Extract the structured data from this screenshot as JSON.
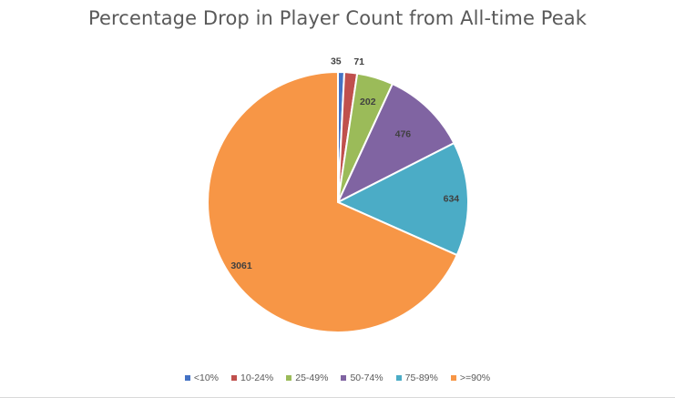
{
  "chart_data": {
    "type": "pie",
    "title": "Percentage Drop in Player Count from All-time Peak",
    "categories": [
      "<10%",
      "10-24%",
      "25-49%",
      "50-74%",
      "75-89%",
      ">=90%"
    ],
    "values": [
      35,
      71,
      202,
      476,
      634,
      3061
    ],
    "colors": [
      "#4472c4",
      "#c0504d",
      "#9bbb59",
      "#8064a2",
      "#4bacc6",
      "#f79646"
    ],
    "legend_position": "bottom",
    "data_labels": true
  }
}
